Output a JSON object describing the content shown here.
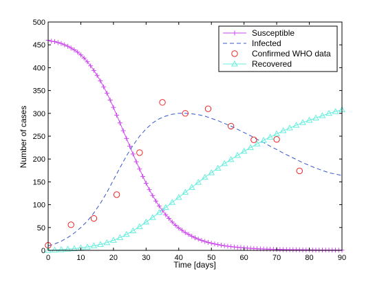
{
  "chart_data": {
    "type": "line",
    "xlabel": "Time [days]",
    "ylabel": "Number of cases",
    "xlim": [
      0,
      90
    ],
    "ylim": [
      0,
      500
    ],
    "xticks": [
      "0",
      "10",
      "20",
      "30",
      "40",
      "50",
      "60",
      "70",
      "80",
      "90"
    ],
    "yticks": [
      "0",
      "50",
      "100",
      "150",
      "200",
      "250",
      "300",
      "350",
      "400",
      "450",
      "500"
    ],
    "grid": false,
    "legend_position": "top-right",
    "colors": {
      "susceptible": "#cc44ee",
      "infected": "#3355cc",
      "who": "#ee2222",
      "recovered": "#66eedd"
    },
    "series": [
      {
        "name": "Susceptible",
        "style": "solid-plus",
        "x": [
          0,
          1,
          2,
          3,
          4,
          5,
          6,
          7,
          8,
          9,
          10,
          11,
          12,
          13,
          14,
          15,
          16,
          17,
          18,
          19,
          20,
          21,
          22,
          23,
          24,
          25,
          26,
          27,
          28,
          29,
          30,
          31,
          32,
          33,
          34,
          35,
          36,
          37,
          38,
          39,
          40,
          41,
          42,
          43,
          44,
          45,
          46,
          47,
          48,
          49,
          50,
          51,
          52,
          53,
          54,
          55,
          56,
          57,
          58,
          59,
          60,
          61,
          62,
          63,
          64,
          65,
          66,
          67,
          68,
          69,
          70,
          71,
          72,
          73,
          74,
          75,
          76,
          77,
          78,
          79,
          80,
          81,
          82,
          83,
          84,
          85,
          86,
          87,
          88,
          89,
          90
        ],
        "y": [
          460,
          458,
          457,
          455,
          453,
          450,
          447,
          443,
          439,
          434,
          428,
          421,
          413,
          404,
          394,
          383,
          371,
          358,
          344,
          329,
          313,
          296,
          279,
          262,
          245,
          228,
          211,
          194,
          178,
          162,
          147,
          133,
          120,
          108,
          97,
          87,
          78,
          70,
          62,
          55,
          49,
          44,
          39,
          35,
          31,
          27.5,
          24.5,
          21.8,
          19.5,
          17.4,
          15.6,
          14,
          12.6,
          11.3,
          10.1,
          9.1,
          8.2,
          7.4,
          6.7,
          6,
          5.4,
          4.9,
          4.4,
          4,
          3.6,
          3.3,
          3,
          2.7,
          2.5,
          2.3,
          2.1,
          1.9,
          1.7,
          1.6,
          1.5,
          1.4,
          1.3,
          1.2,
          1.1,
          1,
          0.95,
          0.9,
          0.85,
          0.8,
          0.75,
          0.7,
          0.65,
          0.6,
          0.55,
          0.5,
          0.5
        ]
      },
      {
        "name": "Infected",
        "style": "dashed",
        "x": [
          0,
          2,
          4,
          6,
          8,
          10,
          12,
          14,
          16,
          18,
          20,
          22,
          24,
          26,
          28,
          30,
          32,
          34,
          36,
          38,
          40,
          42,
          44,
          46,
          48,
          50,
          52,
          54,
          56,
          58,
          60,
          62,
          64,
          66,
          68,
          70,
          72,
          74,
          76,
          78,
          80,
          82,
          84,
          86,
          88,
          90
        ],
        "y": [
          10,
          14,
          20,
          28,
          38,
          50,
          64,
          82,
          103,
          127,
          154,
          181,
          207,
          230,
          250,
          266,
          279,
          288,
          294,
          298,
          300,
          300,
          299,
          297,
          294,
          289,
          284,
          278,
          272,
          265,
          258,
          251,
          243,
          236,
          228,
          221,
          213,
          206,
          199,
          192,
          186,
          180,
          175,
          170,
          167,
          164
        ]
      },
      {
        "name": "Confirmed WHO data",
        "style": "circle",
        "x": [
          0,
          7,
          14,
          21,
          28,
          35,
          42,
          49,
          56,
          63,
          70,
          77
        ],
        "y": [
          11,
          56,
          70,
          122,
          214,
          324,
          300,
          310,
          272,
          242,
          243,
          174
        ]
      },
      {
        "name": "Recovered",
        "style": "solid-triangle",
        "x": [
          0,
          2,
          4,
          6,
          8,
          10,
          12,
          14,
          16,
          18,
          20,
          22,
          24,
          26,
          28,
          30,
          32,
          34,
          36,
          38,
          40,
          42,
          44,
          46,
          48,
          50,
          52,
          54,
          56,
          58,
          60,
          62,
          64,
          66,
          68,
          70,
          72,
          74,
          76,
          78,
          80,
          82,
          84,
          86,
          88,
          90
        ],
        "y": [
          0,
          0.8,
          1.6,
          2.6,
          3.8,
          5.4,
          7.4,
          10,
          13,
          17,
          22,
          28,
          35,
          43,
          52,
          62,
          72,
          83,
          94,
          105,
          116,
          127,
          138,
          149,
          160,
          170,
          180,
          190,
          199,
          208,
          217,
          225,
          233,
          241,
          248,
          255,
          262,
          268,
          274,
          280,
          285,
          290,
          295,
          300,
          304,
          308
        ]
      }
    ]
  }
}
